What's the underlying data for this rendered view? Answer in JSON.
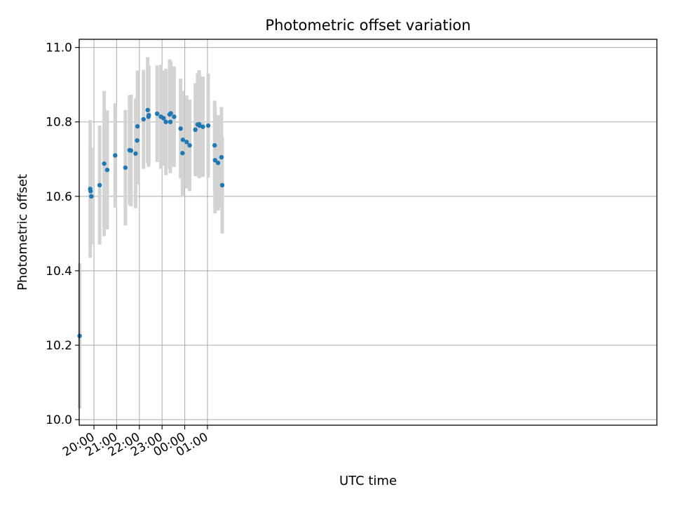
{
  "chart_data": {
    "type": "scatter",
    "title": "Photometric offset variation",
    "xlabel": "UTC time",
    "ylabel": "Photometric offset",
    "x_ticks": [
      "20:00",
      "21:00",
      "22:00",
      "23:00",
      "00:00",
      "01:00"
    ],
    "y_ticks": [
      "10.0",
      "10.2",
      "10.4",
      "10.6",
      "10.8",
      "11.0"
    ],
    "xlim": [
      "19:21",
      "20:48 +1d"
    ],
    "ylim": [
      9.985,
      11.022
    ],
    "grid": true,
    "marker_color": "#1f77b4",
    "errorbar_color": "#d3d3d3",
    "series": [
      {
        "x": [
          "19:22",
          "19:50",
          "19:51",
          "19:53",
          "20:15",
          "20:27",
          "20:35",
          "20:56",
          "21:23",
          "21:34",
          "21:38",
          "21:50",
          "21:54",
          "21:55",
          "22:11",
          "22:22",
          "22:24",
          "22:25",
          "22:47",
          "22:57",
          "23:04",
          "23:10",
          "23:20",
          "23:22",
          "23:23",
          "23:32",
          "23:49",
          "23:54",
          "23:55",
          "24:05",
          "24:13",
          "24:28",
          "24:34",
          "24:38",
          "24:39",
          "24:48",
          "25:02",
          "25:19",
          "25:20",
          "25:28",
          "25:37",
          "25:39"
        ],
        "y": [
          10.225,
          10.62,
          10.614,
          10.6,
          10.63,
          10.688,
          10.671,
          10.71,
          10.677,
          10.724,
          10.723,
          10.715,
          10.75,
          10.788,
          10.807,
          10.832,
          10.814,
          10.818,
          10.822,
          10.814,
          10.81,
          10.8,
          10.82,
          10.8,
          10.823,
          10.814,
          10.782,
          10.716,
          10.752,
          10.746,
          10.737,
          10.779,
          10.793,
          10.794,
          10.79,
          10.787,
          10.79,
          10.737,
          10.697,
          10.69,
          10.705,
          10.63
        ],
        "yerr": [
          0.195,
          0.185,
          0.12,
          0.13,
          0.16,
          0.195,
          0.16,
          0.14,
          0.155,
          0.148,
          0.15,
          0.147,
          0.118,
          0.15,
          0.133,
          0.142,
          0.135,
          0.132,
          0.13,
          0.14,
          0.128,
          0.143,
          0.148,
          0.138,
          0.14,
          0.135,
          0.134,
          0.117,
          0.132,
          0.125,
          0.123,
          0.125,
          0.138,
          0.145,
          0.14,
          0.135,
          0.14,
          0.12,
          0.143,
          0.128,
          0.135,
          0.13
        ]
      }
    ]
  }
}
